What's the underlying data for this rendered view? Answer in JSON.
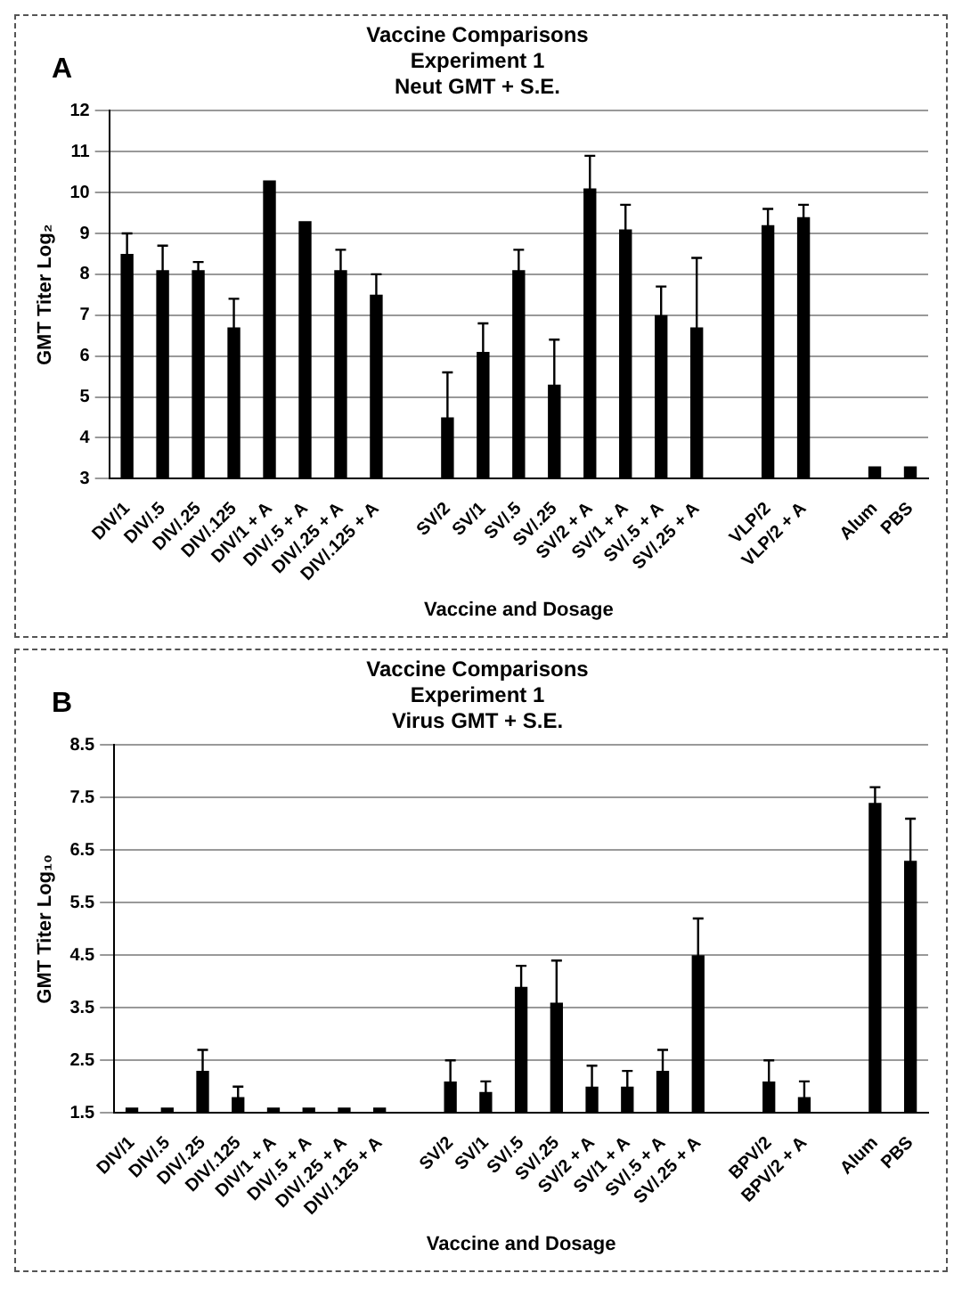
{
  "chart_data": [
    {
      "type": "bar",
      "title": "Vaccine Comparisons\nExperiment 1\nNeut GMT + S.E.",
      "annotations": [
        "A"
      ],
      "xlabel": "Vaccine and Dosage",
      "ylabel": "GMT Titer Log₂",
      "categories": [
        "DIV/1",
        "DIV/.5",
        "DIV/.25",
        "DIV/.125",
        "DIV/1 + A",
        "DIV/.5 + A",
        "DIV/.25 + A",
        "DIV/.125 + A",
        null,
        "SV/2",
        "SV/1",
        "SV/.5",
        "SV/.25",
        "SV/2 + A",
        "SV/1 + A",
        "SV/.5 + A",
        "SV/.25 + A",
        null,
        "VLP/2",
        "VLP/2 + A",
        null,
        "Alum",
        "PBS"
      ],
      "values": [
        8.5,
        8.1,
        8.1,
        6.7,
        10.3,
        9.3,
        8.1,
        7.5,
        null,
        4.5,
        6.1,
        8.1,
        5.3,
        10.1,
        9.1,
        7.0,
        6.7,
        null,
        9.2,
        9.4,
        null,
        3.3,
        3.3
      ],
      "errors": [
        0.5,
        0.6,
        0.2,
        0.7,
        null,
        null,
        0.5,
        0.5,
        null,
        1.1,
        0.7,
        0.5,
        1.1,
        0.8,
        0.6,
        0.7,
        1.7,
        null,
        0.4,
        0.3,
        null,
        null,
        null
      ],
      "color": "#000000",
      "ylim": [
        3,
        12
      ],
      "yticks": [
        3,
        4,
        5,
        6,
        7,
        8,
        9,
        10,
        11,
        12
      ],
      "grid": "y"
    },
    {
      "type": "bar",
      "title": "Vaccine Comparisons\nExperiment 1\nVirus GMT + S.E.",
      "annotations": [
        "B"
      ],
      "xlabel": "Vaccine and Dosage",
      "ylabel": "GMT Titer Log₁₀",
      "categories": [
        "DIV/1",
        "DIV/.5",
        "DIV/.25",
        "DIV/.125",
        "DIV/1 + A",
        "DIV/.5 + A",
        "DIV/.25 + A",
        "DIV/.125 + A",
        null,
        "SV/2",
        "SV/1",
        "SV/.5",
        "SV/.25",
        "SV/2 + A",
        "SV/1 + A",
        "SV/.5 + A",
        "SV/.25 + A",
        null,
        "BPV/2",
        "BPV/2 + A",
        null,
        "Alum",
        "PBS"
      ],
      "values": [
        1.6,
        1.6,
        2.3,
        1.8,
        1.6,
        1.6,
        1.6,
        1.6,
        null,
        2.1,
        1.9,
        3.9,
        3.6,
        2.0,
        2.0,
        2.3,
        4.5,
        null,
        2.1,
        1.8,
        null,
        7.4,
        6.3
      ],
      "errors": [
        null,
        null,
        0.4,
        0.2,
        null,
        null,
        null,
        null,
        null,
        0.4,
        0.2,
        0.4,
        0.8,
        0.4,
        0.3,
        0.4,
        0.7,
        null,
        0.4,
        0.3,
        null,
        0.3,
        0.8
      ],
      "color": "#000000",
      "ylim": [
        1.5,
        8.5
      ],
      "yticks": [
        1.5,
        2.5,
        3.5,
        4.5,
        5.5,
        6.5,
        7.5,
        8.5
      ],
      "grid": "y"
    }
  ]
}
